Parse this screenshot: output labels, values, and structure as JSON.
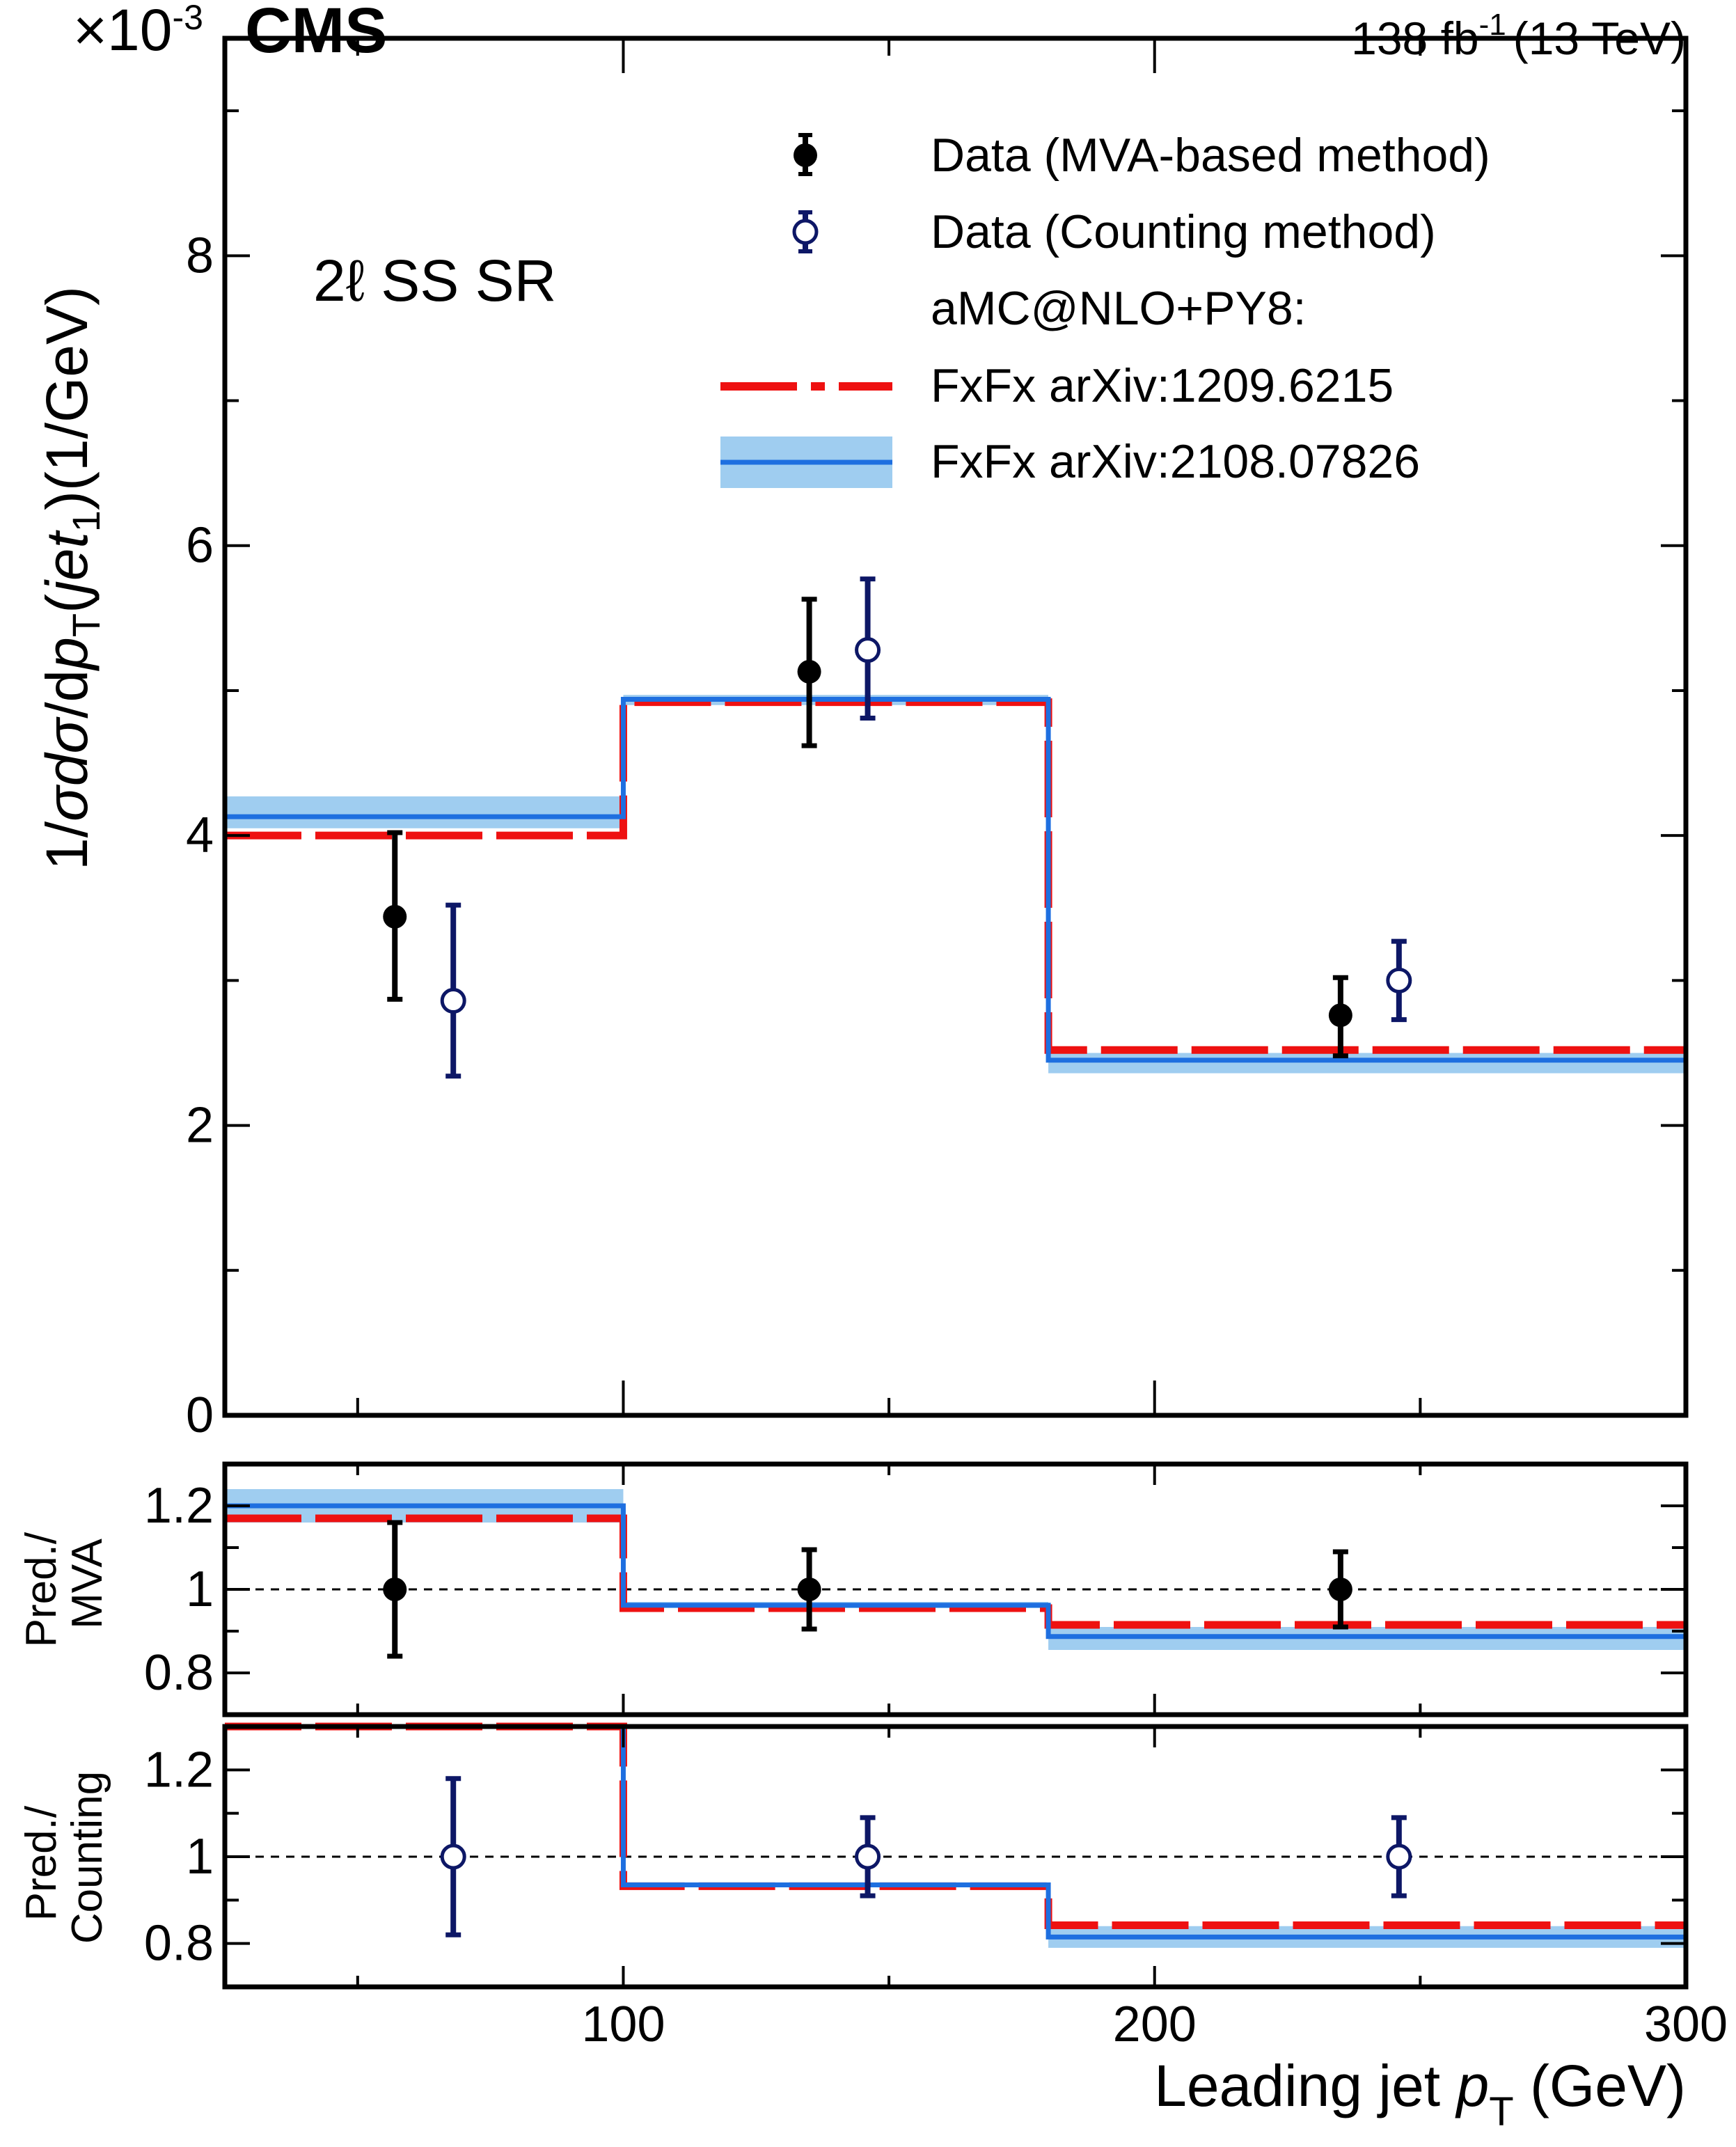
{
  "header": {
    "experiment": "CMS",
    "exponent_label": "×10",
    "exponent_power": "-3",
    "lumi_value": "138 fb",
    "lumi_power": "-1",
    "lumi_energy": "(13 TeV)"
  },
  "region_label": "2ℓ SS SR",
  "colors": {
    "data_mva": "#000000",
    "data_counting": "#0d1766",
    "fxfx_1209": "#ee1111",
    "fxfx_2108_line": "#1e6fe0",
    "fxfx_2108_band": "#9fcdf0"
  },
  "legend": {
    "data_mva": "Data (MVA-based method)",
    "data_counting": "Data (Counting method)",
    "generator_header": "aMC@NLO+PY8:",
    "fxfx_1209": "FxFx arXiv:1209.6215",
    "fxfx_2108": "FxFx arXiv:2108.07826"
  },
  "chart_data": [
    {
      "type": "line",
      "panel": "main",
      "ylabel": "1/σdσ/dp_T(jet_1)(1/GeV)",
      "ylabel_parts": {
        "a": "1/",
        "b": "σ",
        "c": "d",
        "d": "σ",
        "e": "/d",
        "f": "p",
        "g": "T",
        "h": "(",
        "i": "jet",
        "j": "1",
        "k": ")(1/GeV)"
      },
      "xlim": [
        25,
        300
      ],
      "ylim": [
        0,
        9.5
      ],
      "y_scale_factor": "×10^-3",
      "yticks": [
        0,
        2,
        4,
        6,
        8
      ],
      "ytick_labels": [
        "0",
        "2",
        "4",
        "6",
        "8"
      ],
      "bin_edges": [
        25,
        100,
        180,
        300
      ],
      "series": [
        {
          "name": "FxFx arXiv:1209.6215",
          "style": "dashed",
          "values": [
            4.0,
            4.92,
            2.52
          ]
        },
        {
          "name": "FxFx arXiv:2108.07826",
          "style": "solid",
          "values": [
            4.13,
            4.94,
            2.45
          ],
          "band_low": [
            4.05,
            4.9,
            2.36
          ],
          "band_high": [
            4.27,
            4.97,
            2.5
          ]
        },
        {
          "name": "Data (MVA-based method)",
          "style": "filled-marker",
          "x": [
            57,
            135,
            235
          ],
          "y": [
            3.44,
            5.13,
            2.76
          ],
          "yerr_low": [
            0.57,
            0.51,
            0.28
          ],
          "yerr_high": [
            0.58,
            0.5,
            0.26
          ]
        },
        {
          "name": "Data (Counting method)",
          "style": "open-marker",
          "x": [
            68,
            146,
            246
          ],
          "y": [
            2.86,
            5.28,
            3.0
          ],
          "yerr_low": [
            0.52,
            0.47,
            0.27
          ],
          "yerr_high": [
            0.66,
            0.49,
            0.27
          ]
        }
      ]
    },
    {
      "type": "line",
      "panel": "ratio-mva",
      "ylabel_line1": "Pred./",
      "ylabel_line2": "MVA",
      "xlim": [
        25,
        300
      ],
      "ylim": [
        0.7,
        1.3
      ],
      "yticks": [
        0.8,
        1.0,
        1.2
      ],
      "ytick_labels": [
        "0.8",
        "1",
        "1.2"
      ],
      "reference_line": 1.0,
      "bin_edges": [
        25,
        100,
        180,
        300
      ],
      "series": [
        {
          "name": "FxFx arXiv:1209.6215",
          "style": "dashed",
          "values": [
            1.17,
            0.955,
            0.915
          ]
        },
        {
          "name": "FxFx arXiv:2108.07826",
          "style": "solid",
          "values": [
            1.2,
            0.962,
            0.887
          ],
          "band_low": [
            1.16,
            0.955,
            0.855
          ],
          "band_high": [
            1.24,
            0.97,
            0.91
          ]
        },
        {
          "name": "Data (MVA-based method)",
          "style": "filled-marker",
          "x": [
            57,
            135,
            235
          ],
          "y": [
            1.0,
            1.0,
            1.0
          ],
          "yerr_low": [
            0.16,
            0.095,
            0.09
          ],
          "yerr_high": [
            0.16,
            0.095,
            0.09
          ]
        }
      ]
    },
    {
      "type": "line",
      "panel": "ratio-counting",
      "ylabel_line1": "Pred./",
      "ylabel_line2": "Counting",
      "xlim": [
        25,
        300
      ],
      "ylim": [
        0.7,
        1.3
      ],
      "yticks": [
        0.8,
        1.0,
        1.2
      ],
      "ytick_labels": [
        "0.8",
        "1",
        "1.2"
      ],
      "reference_line": 1.0,
      "bin_edges": [
        25,
        100,
        180,
        300
      ],
      "xticks": [
        100,
        200,
        300
      ],
      "xtick_labels": [
        "100",
        "200",
        "300"
      ],
      "xlabel": "Leading jet p_T (GeV)",
      "xlabel_parts": {
        "a": "Leading jet ",
        "b": "p",
        "c": "T",
        "d": " (GeV)"
      },
      "series": [
        {
          "name": "FxFx arXiv:1209.6215",
          "style": "dashed",
          "values": [
            1.3,
            0.932,
            0.842
          ]
        },
        {
          "name": "FxFx arXiv:2108.07826",
          "style": "solid",
          "values": [
            1.3,
            0.935,
            0.815
          ],
          "band_low": [
            1.3,
            0.93,
            0.79
          ],
          "band_high": [
            1.3,
            0.94,
            0.84
          ]
        },
        {
          "name": "Data (Counting method)",
          "style": "open-marker",
          "x": [
            68,
            146,
            246
          ],
          "y": [
            1.0,
            1.0,
            1.0
          ],
          "yerr_low": [
            0.18,
            0.09,
            0.09
          ],
          "yerr_high": [
            0.18,
            0.09,
            0.09
          ]
        }
      ]
    }
  ]
}
